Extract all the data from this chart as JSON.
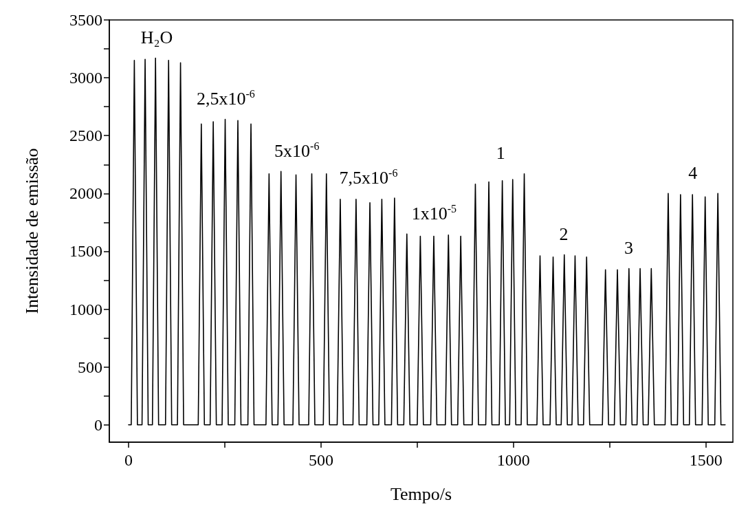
{
  "chart_data": {
    "type": "line",
    "xlabel": "Tempo/s",
    "ylabel": "Intensidade de emissão",
    "xlim": [
      -50,
      1570
    ],
    "ylim": [
      -150,
      3500
    ],
    "xticks": [
      0,
      {
        "value": 250,
        "label": null
      },
      500,
      {
        "value": 750,
        "label": null
      },
      1000,
      {
        "value": 1250,
        "label": null
      },
      1500
    ],
    "yticks": [
      0,
      {
        "value": 250,
        "label": null
      },
      500,
      {
        "value": 750,
        "label": null
      },
      1000,
      {
        "value": 1250,
        "label": null
      },
      1500,
      {
        "value": 1750,
        "label": null
      },
      2000,
      {
        "value": 2250,
        "label": null
      },
      2500,
      {
        "value": 2750,
        "label": null
      },
      3000,
      {
        "value": 3250,
        "label": null
      },
      3500
    ],
    "grid": false,
    "marker": "none",
    "line_style": "solid",
    "series": [
      {
        "color": "#000000",
        "x": [
          0,
          7,
          15,
          23,
          35,
          43,
          51,
          62,
          70,
          78,
          96,
          104,
          112,
          127,
          135,
          143,
          181,
          189,
          197,
          212,
          220,
          228,
          243,
          251,
          259,
          276,
          284,
          292,
          310,
          318,
          326,
          357,
          365,
          373,
          388,
          396,
          404,
          427,
          435,
          443,
          468,
          476,
          484,
          506,
          514,
          522,
          542,
          550,
          558,
          583,
          591,
          599,
          619,
          627,
          635,
          650,
          658,
          666,
          683,
          691,
          699,
          715,
          723,
          731,
          750,
          758,
          766,
          785,
          793,
          801,
          823,
          831,
          839,
          855,
          863,
          871,
          893,
          901,
          909,
          928,
          936,
          944,
          963,
          971,
          979,
          990,
          998,
          1006,
          1020,
          1028,
          1036,
          1061,
          1069,
          1077,
          1095,
          1103,
          1111,
          1124,
          1132,
          1140,
          1152,
          1160,
          1168,
          1182,
          1190,
          1198,
          1231,
          1239,
          1247,
          1262,
          1270,
          1278,
          1292,
          1300,
          1308,
          1321,
          1329,
          1337,
          1350,
          1358,
          1366,
          1394,
          1402,
          1410,
          1426,
          1434,
          1442,
          1457,
          1465,
          1473,
          1490,
          1498,
          1506,
          1523,
          1531,
          1539,
          1550
        ],
        "values": [
          0,
          0,
          3150,
          0,
          0,
          3160,
          0,
          0,
          3170,
          0,
          0,
          3150,
          0,
          0,
          3130,
          0,
          0,
          2600,
          0,
          0,
          2620,
          0,
          0,
          2640,
          0,
          0,
          2630,
          0,
          0,
          2600,
          0,
          0,
          2170,
          0,
          0,
          2190,
          0,
          0,
          2160,
          0,
          0,
          2170,
          0,
          0,
          2170,
          0,
          0,
          1950,
          0,
          0,
          1950,
          0,
          0,
          1920,
          0,
          0,
          1950,
          0,
          0,
          1960,
          0,
          0,
          1650,
          0,
          0,
          1630,
          0,
          0,
          1630,
          0,
          0,
          1640,
          0,
          0,
          1630,
          0,
          0,
          2080,
          0,
          0,
          2100,
          0,
          0,
          2110,
          0,
          0,
          2120,
          0,
          0,
          2170,
          0,
          0,
          1460,
          0,
          0,
          1450,
          0,
          0,
          1470,
          0,
          0,
          1460,
          0,
          0,
          1450,
          0,
          0,
          1340,
          0,
          0,
          1340,
          0,
          0,
          1350,
          0,
          0,
          1350,
          0,
          0,
          1350,
          0,
          0,
          2000,
          0,
          0,
          1990,
          0,
          0,
          1990,
          0,
          0,
          1970,
          0,
          0,
          2000,
          0,
          0
        ]
      }
    ],
    "annotations": [
      "H₂O",
      "2,5x10$^{-6}$",
      "5x10$^{-6}$",
      "7,5x10$^{-6}$",
      "1x10$^{-5}$",
      "1",
      "2",
      "3",
      "4"
    ]
  }
}
